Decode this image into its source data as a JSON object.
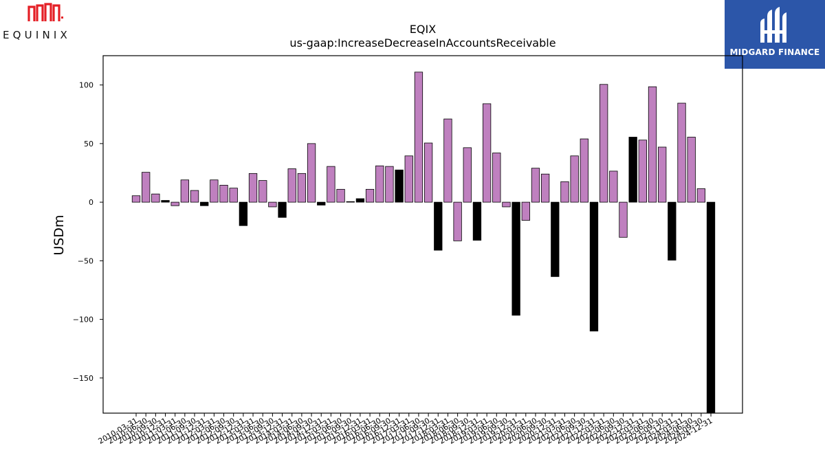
{
  "logos": {
    "left_brand": "EQUINIX",
    "left_brand_color": "#e41f26",
    "right_brand": "MIDGARD FINANCE",
    "right_brand_bg": "#2c56a9"
  },
  "chart_data": {
    "type": "bar",
    "title": "EQIX",
    "subtitle": "us-gaap:IncreaseDecreaseInAccountsReceivable",
    "xlabel": "",
    "ylabel": "USDm",
    "ylim": [
      -180,
      125
    ],
    "yticks": [
      100,
      50,
      0,
      -50,
      -100,
      -150
    ],
    "grid": false,
    "legend": "none",
    "colors": {
      "default": "#bf80bf",
      "highlight": "#000000",
      "edge": "#000000"
    },
    "categories": [
      "2010-03-31",
      "2010-06-30",
      "2010-09-30",
      "2010-12-31",
      "2011-03-31",
      "2011-06-30",
      "2011-09-30",
      "2011-12-31",
      "2012-03-31",
      "2012-06-30",
      "2012-09-30",
      "2012-12-31",
      "2013-03-31",
      "2013-06-30",
      "2013-09-30",
      "2013-12-31",
      "2014-03-31",
      "2014-06-30",
      "2014-09-30",
      "2014-12-31",
      "2015-03-31",
      "2015-06-30",
      "2015-09-30",
      "2015-12-31",
      "2016-03-31",
      "2016-06-30",
      "2016-09-30",
      "2016-12-31",
      "2017-03-31",
      "2017-06-30",
      "2017-09-30",
      "2017-12-31",
      "2018-03-31",
      "2018-06-30",
      "2018-09-30",
      "2018-12-31",
      "2019-03-31",
      "2019-06-30",
      "2019-09-30",
      "2019-12-31",
      "2020-03-31",
      "2020-06-30",
      "2020-09-30",
      "2020-12-31",
      "2021-03-31",
      "2021-06-30",
      "2021-09-30",
      "2021-12-31",
      "2022-03-31",
      "2022-06-30",
      "2022-09-30",
      "2022-12-31",
      "2023-03-31",
      "2023-06-30",
      "2023-09-30",
      "2023-12-31",
      "2024-03-31",
      "2024-06-30",
      "2024-09-30",
      "2024-12-31"
    ],
    "values": [
      5.5,
      25.5,
      7,
      1.5,
      -3,
      19,
      10,
      -3,
      19,
      14.5,
      12,
      -20,
      24.5,
      18.5,
      -4,
      -13,
      28.5,
      24.5,
      50,
      -2.5,
      30.5,
      11,
      0.5,
      3,
      11,
      31,
      30.5,
      27.5,
      39.5,
      111,
      50.5,
      -41,
      71,
      -33,
      46.5,
      -32.5,
      84,
      42,
      -4,
      -96.5,
      -15.5,
      29,
      24,
      -63.5,
      17.5,
      39.5,
      54,
      -110,
      100.5,
      26.5,
      -30,
      55.5,
      53,
      98.5,
      47,
      -49.5,
      84.5,
      55.5,
      11.5,
      -180
    ],
    "highlight": [
      false,
      false,
      false,
      true,
      false,
      false,
      false,
      true,
      false,
      false,
      false,
      true,
      false,
      false,
      false,
      true,
      false,
      false,
      false,
      true,
      false,
      false,
      false,
      true,
      false,
      false,
      false,
      true,
      false,
      false,
      false,
      true,
      false,
      false,
      false,
      true,
      false,
      false,
      false,
      true,
      false,
      false,
      false,
      true,
      false,
      false,
      false,
      true,
      false,
      false,
      false,
      true,
      false,
      false,
      false,
      true,
      false,
      false,
      false,
      true
    ]
  }
}
